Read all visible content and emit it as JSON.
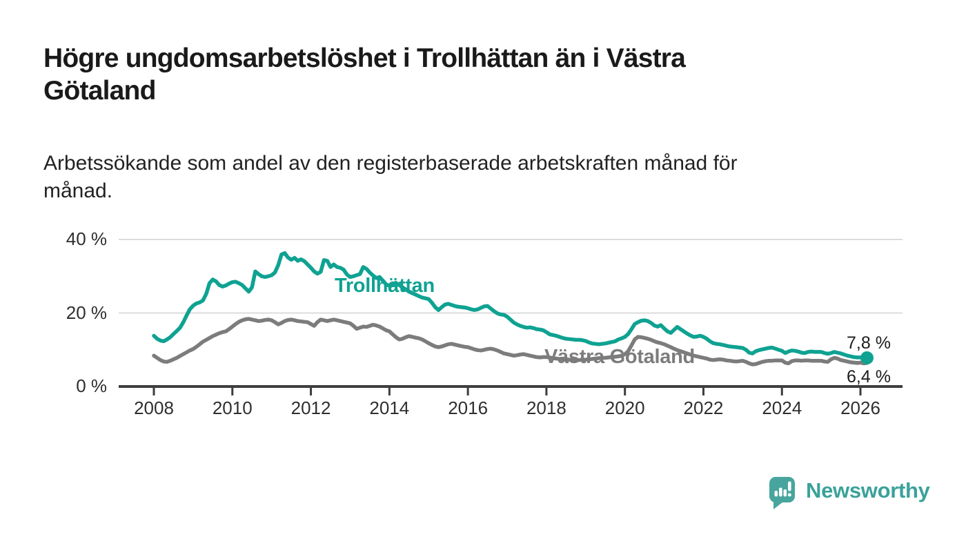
{
  "page": {
    "background": "#ffffff"
  },
  "header": {
    "title_lines": [
      "Högre ungdomsarbetslöshet i Trollhättan än i Västra",
      "Götaland"
    ],
    "subtitle_lines": [
      "Arbetssökande som andel av den registerbaserade arbetskraften månad för",
      "månad."
    ]
  },
  "chart_data": {
    "type": "line",
    "frequency": "monthly",
    "x_start": "2008-01",
    "x_end": "2026-03",
    "x_tick_labels": [
      "2008",
      "2010",
      "2012",
      "2014",
      "2016",
      "2018",
      "2020",
      "2022",
      "2024",
      "2026"
    ],
    "y_ticks": [
      {
        "label": "0 %",
        "value": 0
      },
      {
        "label": "20 %",
        "value": 20
      },
      {
        "label": "40 %",
        "value": 40
      }
    ],
    "y_gridlines": [
      20,
      40
    ],
    "ylim": [
      0,
      42
    ],
    "grid": "horizontal",
    "style": {
      "axis_color": "#3d3d3d",
      "gridline_color": "#dcdcdc",
      "tick_text_color": "#2f2f2f",
      "line_width": 5.5
    },
    "series": [
      {
        "name": "Trollhättan",
        "color": "#0fa292",
        "end_label": "7,8 %",
        "end_value": 7.8,
        "end_dot": true,
        "values": [
          13.8,
          13.0,
          12.5,
          12.3,
          12.8,
          13.4,
          14.3,
          15.1,
          16.0,
          17.5,
          19.3,
          21.0,
          22.0,
          22.6,
          22.9,
          23.4,
          25.2,
          28.1,
          29.1,
          28.6,
          27.6,
          27.2,
          27.5,
          28.0,
          28.4,
          28.5,
          28.1,
          27.6,
          26.7,
          25.8,
          27.0,
          31.3,
          30.6,
          30.0,
          29.8,
          30.0,
          30.3,
          31.0,
          33.0,
          35.9,
          36.3,
          35.1,
          34.5,
          35.0,
          34.2,
          34.6,
          34.1,
          33.2,
          32.3,
          31.3,
          30.7,
          31.2,
          34.4,
          34.2,
          32.5,
          33.2,
          32.5,
          32.3,
          31.8,
          30.5,
          29.8,
          30.0,
          30.3,
          30.6,
          32.5,
          32.0,
          31.0,
          30.2,
          29.5,
          29.8,
          28.8,
          27.8,
          27.4,
          27.8,
          28.2,
          27.6,
          27.0,
          26.4,
          25.8,
          25.4,
          25.0,
          24.6,
          24.2,
          24.0,
          23.8,
          22.8,
          21.6,
          20.8,
          21.6,
          22.3,
          22.5,
          22.2,
          21.9,
          21.7,
          21.6,
          21.5,
          21.3,
          21.0,
          20.8,
          21.0,
          21.4,
          21.8,
          21.9,
          21.2,
          20.5,
          19.9,
          19.6,
          19.5,
          19.0,
          18.2,
          17.4,
          16.9,
          16.5,
          16.2,
          16.0,
          16.1,
          15.9,
          15.6,
          15.5,
          15.3,
          14.8,
          14.2,
          14.0,
          13.8,
          13.5,
          13.2,
          13.0,
          12.9,
          12.8,
          12.7,
          12.7,
          12.6,
          12.4,
          12.0,
          11.7,
          11.6,
          11.5,
          11.6,
          11.7,
          11.9,
          12.1,
          12.3,
          12.8,
          13.1,
          13.5,
          14.3,
          15.6,
          17.0,
          17.5,
          17.9,
          18.0,
          17.8,
          17.3,
          16.6,
          16.3,
          16.7,
          15.8,
          15.0,
          14.6,
          15.4,
          16.2,
          15.6,
          15.0,
          14.4,
          13.9,
          13.5,
          13.6,
          13.8,
          13.5,
          13.0,
          12.3,
          11.8,
          11.6,
          11.5,
          11.3,
          11.1,
          10.9,
          10.8,
          10.7,
          10.6,
          10.5,
          10.0,
          9.2,
          9.0,
          9.6,
          9.9,
          10.1,
          10.3,
          10.5,
          10.6,
          10.3,
          10.0,
          9.7,
          9.1,
          9.5,
          9.8,
          9.7,
          9.5,
          9.2,
          9.1,
          9.4,
          9.5,
          9.4,
          9.4,
          9.4,
          9.1,
          8.9,
          9.1,
          9.4,
          9.2,
          9.0,
          8.7,
          8.4,
          8.2,
          8.0,
          7.9,
          7.9,
          7.8,
          7.8
        ]
      },
      {
        "name": "Västra Götaland",
        "color": "#7c7c7c",
        "end_label": "6,4 %",
        "end_value": 6.4,
        "end_dot": false,
        "values": [
          8.4,
          7.8,
          7.2,
          6.8,
          6.7,
          7.0,
          7.4,
          7.8,
          8.3,
          8.8,
          9.3,
          9.8,
          10.2,
          10.8,
          11.5,
          12.2,
          12.7,
          13.2,
          13.7,
          14.1,
          14.5,
          14.8,
          15.0,
          15.6,
          16.3,
          17.0,
          17.6,
          18.0,
          18.3,
          18.4,
          18.2,
          18.0,
          17.8,
          17.9,
          18.1,
          18.2,
          18.0,
          17.5,
          16.9,
          17.3,
          17.8,
          18.1,
          18.2,
          18.0,
          17.8,
          17.7,
          17.6,
          17.5,
          17.0,
          16.5,
          17.5,
          18.2,
          18.0,
          17.8,
          18.0,
          18.2,
          18.0,
          17.8,
          17.6,
          17.4,
          17.2,
          16.5,
          15.7,
          16.0,
          16.3,
          16.2,
          16.5,
          16.8,
          16.6,
          16.3,
          15.8,
          15.3,
          15.0,
          14.2,
          13.4,
          12.8,
          13.0,
          13.4,
          13.7,
          13.5,
          13.3,
          13.1,
          12.8,
          12.3,
          11.8,
          11.3,
          10.9,
          10.7,
          10.9,
          11.2,
          11.5,
          11.6,
          11.4,
          11.2,
          11.0,
          10.8,
          10.7,
          10.4,
          10.1,
          9.9,
          9.8,
          10.0,
          10.2,
          10.3,
          10.1,
          9.8,
          9.4,
          9.0,
          8.8,
          8.6,
          8.4,
          8.5,
          8.7,
          8.8,
          8.6,
          8.4,
          8.2,
          8.0,
          7.9,
          8.0,
          8.0,
          7.9,
          7.7,
          7.6,
          7.5,
          7.4,
          7.4,
          7.3,
          7.2,
          7.2,
          7.2,
          7.3,
          7.3,
          7.4,
          7.5,
          7.6,
          7.7,
          7.8,
          7.8,
          7.9,
          8.0,
          8.1,
          8.2,
          8.4,
          8.8,
          9.6,
          11.2,
          12.8,
          13.5,
          13.4,
          13.2,
          13.0,
          12.7,
          12.3,
          12.0,
          11.8,
          11.5,
          11.1,
          10.7,
          10.3,
          9.9,
          9.6,
          9.3,
          9.0,
          8.7,
          8.4,
          8.2,
          8.0,
          7.8,
          7.6,
          7.3,
          7.2,
          7.3,
          7.4,
          7.3,
          7.1,
          7.0,
          6.9,
          6.8,
          6.9,
          7.0,
          6.7,
          6.3,
          6.0,
          6.1,
          6.4,
          6.7,
          6.9,
          7.0,
          7.0,
          7.1,
          7.1,
          7.1,
          6.5,
          6.3,
          6.9,
          7.1,
          7.1,
          7.0,
          7.1,
          7.1,
          7.0,
          7.0,
          7.0,
          7.0,
          6.8,
          6.7,
          7.4,
          7.8,
          7.6,
          7.2,
          7.0,
          6.8,
          6.6,
          6.5,
          6.4,
          6.5,
          6.3,
          6.4
        ]
      }
    ]
  },
  "footer": {
    "brand": "Newsworthy",
    "brand_color": "#3aa29a",
    "icon_color": "#48a59e"
  }
}
